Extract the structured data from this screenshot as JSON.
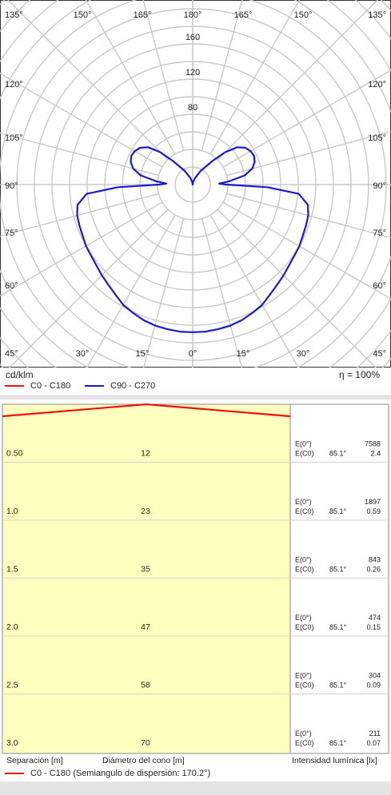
{
  "chart_data": [
    {
      "type": "polar",
      "unit_label": "cd/klm",
      "efficiency_label": "η = 100%",
      "angle_labels_top": [
        "135°",
        "150°",
        "165°",
        "180°",
        "165°",
        "150°",
        "135°"
      ],
      "angle_labels_left": [
        "120°",
        "105°",
        "90°",
        "75°",
        "60°"
      ],
      "angle_labels_right": [
        "120°",
        "105°",
        "90°",
        "75°",
        "60°"
      ],
      "angle_labels_bottom": [
        "45°",
        "30°",
        "15°",
        "0°",
        "15°",
        "30°",
        "45°"
      ],
      "radial_labels": [
        "80",
        "120",
        "160"
      ],
      "rlim": [
        0,
        200
      ],
      "series": [
        {
          "name": "C0 - C180",
          "color": "#ee1111",
          "angles": [],
          "values": []
        },
        {
          "name": "C90 - C270",
          "color": "#1a1acc",
          "angles": [
            0,
            5,
            10,
            15,
            20,
            25,
            30,
            35,
            40,
            45,
            50,
            55,
            60,
            65,
            70,
            75,
            80,
            85,
            88,
            90,
            92,
            95,
            100,
            105,
            110,
            115,
            120,
            125,
            130,
            135,
            140,
            150,
            160,
            170,
            180
          ],
          "values": [
            168,
            168,
            167,
            166,
            164,
            161,
            158,
            153,
            149,
            146,
            143,
            141,
            140,
            138,
            137,
            136,
            133,
            121,
            85,
            38,
            30,
            41,
            60,
            70,
            75,
            77,
            76,
            73,
            66,
            52,
            35,
            18,
            8,
            3,
            0
          ]
        }
      ]
    },
    {
      "type": "table",
      "columns": [
        "Separación [m]",
        "Diámetro del cono [m]",
        "Intensidad lumínica [lx]"
      ],
      "rows": [
        {
          "separation": "0.50",
          "diameter": "12",
          "e0_label": "E(0°)",
          "ec0_label": "E(C0)",
          "angle": "85.1°",
          "e0": "7588",
          "ec0": "2.4"
        },
        {
          "separation": "1.0",
          "diameter": "23",
          "e0_label": "E(0°)",
          "ec0_label": "E(C0)",
          "angle": "85.1°",
          "e0": "1897",
          "ec0": "0.59"
        },
        {
          "separation": "1.5",
          "diameter": "35",
          "e0_label": "E(0°)",
          "ec0_label": "E(C0)",
          "angle": "85.1°",
          "e0": "843",
          "ec0": "0.26"
        },
        {
          "separation": "2.0",
          "diameter": "47",
          "e0_label": "E(0°)",
          "ec0_label": "E(C0)",
          "angle": "85.1°",
          "e0": "474",
          "ec0": "0.15"
        },
        {
          "separation": "2.5",
          "diameter": "58",
          "e0_label": "E(0°)",
          "ec0_label": "E(C0)",
          "angle": "85.1°",
          "e0": "304",
          "ec0": "0.09"
        },
        {
          "separation": "3.0",
          "diameter": "70",
          "e0_label": "E(0°)",
          "ec0_label": "E(C0)",
          "angle": "85.1°",
          "e0": "211",
          "ec0": "0.07"
        }
      ],
      "legend": "C0 - C180 (Semiangulo de dispersión: 170.2°)",
      "line_color": "#ee1111",
      "fill_color": "#ffffc0"
    }
  ]
}
